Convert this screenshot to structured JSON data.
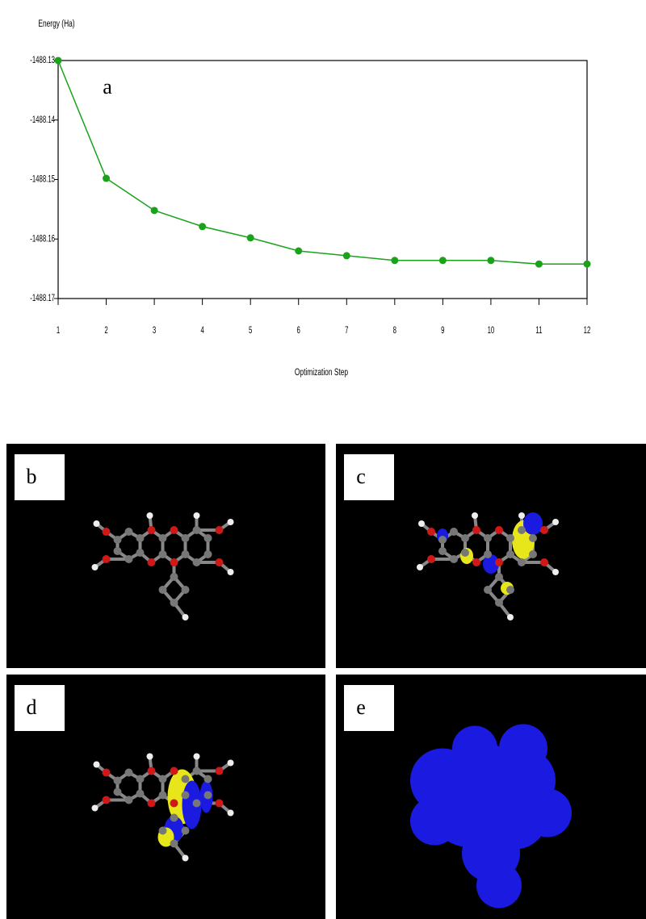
{
  "chart_data": {
    "type": "line",
    "y_label": "Energy (Ha)",
    "x_label": "Optimization Step",
    "annotation": "a",
    "x": [
      1,
      2,
      3,
      4,
      5,
      6,
      7,
      8,
      9,
      10,
      11,
      12
    ],
    "series": [
      {
        "color": "#1aa31a",
        "values": [
          -1488.13,
          -1488.1498,
          -1488.1552,
          -1488.1579,
          -1488.1598,
          -1488.162,
          -1488.1628,
          -1488.1636,
          -1488.1636,
          -1488.1636,
          -1488.1642,
          -1488.1642
        ]
      }
    ],
    "xlim": [
      1,
      12
    ],
    "xticks": [
      1,
      2,
      3,
      4,
      5,
      6,
      7,
      8,
      9,
      10,
      11,
      12
    ],
    "ylim": [
      -1488.17,
      -1488.13
    ],
    "yticks": [
      -1488.13,
      -1488.14,
      -1488.15,
      -1488.16,
      -1488.17
    ]
  },
  "panels": [
    {
      "label": "b"
    },
    {
      "label": "c"
    },
    {
      "label": "d"
    },
    {
      "label": "e"
    }
  ]
}
